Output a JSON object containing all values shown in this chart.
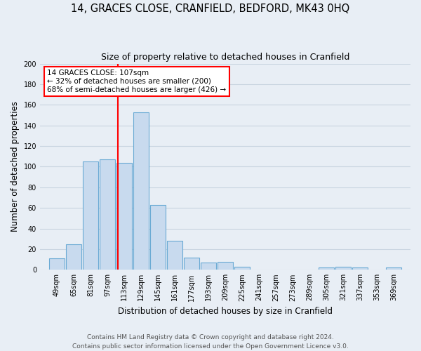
{
  "title": "14, GRACES CLOSE, CRANFIELD, BEDFORD, MK43 0HQ",
  "subtitle": "Size of property relative to detached houses in Cranfield",
  "xlabel": "Distribution of detached houses by size in Cranfield",
  "ylabel": "Number of detached properties",
  "footer_line1": "Contains HM Land Registry data © Crown copyright and database right 2024.",
  "footer_line2": "Contains public sector information licensed under the Open Government Licence v3.0.",
  "bar_labels": [
    "49sqm",
    "65sqm",
    "81sqm",
    "97sqm",
    "113sqm",
    "129sqm",
    "145sqm",
    "161sqm",
    "177sqm",
    "193sqm",
    "209sqm",
    "225sqm",
    "241sqm",
    "257sqm",
    "273sqm",
    "289sqm",
    "305sqm",
    "321sqm",
    "337sqm",
    "353sqm",
    "369sqm"
  ],
  "bar_values": [
    11,
    25,
    105,
    107,
    104,
    153,
    63,
    28,
    12,
    7,
    8,
    3,
    0,
    0,
    0,
    0,
    2,
    3,
    2,
    0,
    2
  ],
  "bar_color": "#c8daee",
  "bar_edge_color": "#6aaad4",
  "background_color": "#e8eef5",
  "grid_color": "#c8d4e0",
  "annotation_text_line1": "14 GRACES CLOSE: 107sqm",
  "annotation_text_line2": "← 32% of detached houses are smaller (200)",
  "annotation_text_line3": "68% of semi-detached houses are larger (426) →",
  "redline_x": 107,
  "ylim": [
    0,
    200
  ],
  "yticks": [
    0,
    20,
    40,
    60,
    80,
    100,
    120,
    140,
    160,
    180,
    200
  ],
  "title_fontsize": 10.5,
  "subtitle_fontsize": 9,
  "axis_label_fontsize": 8.5,
  "tick_fontsize": 7,
  "annotation_fontsize": 7.5,
  "footer_fontsize": 6.5,
  "bin_width": 16
}
